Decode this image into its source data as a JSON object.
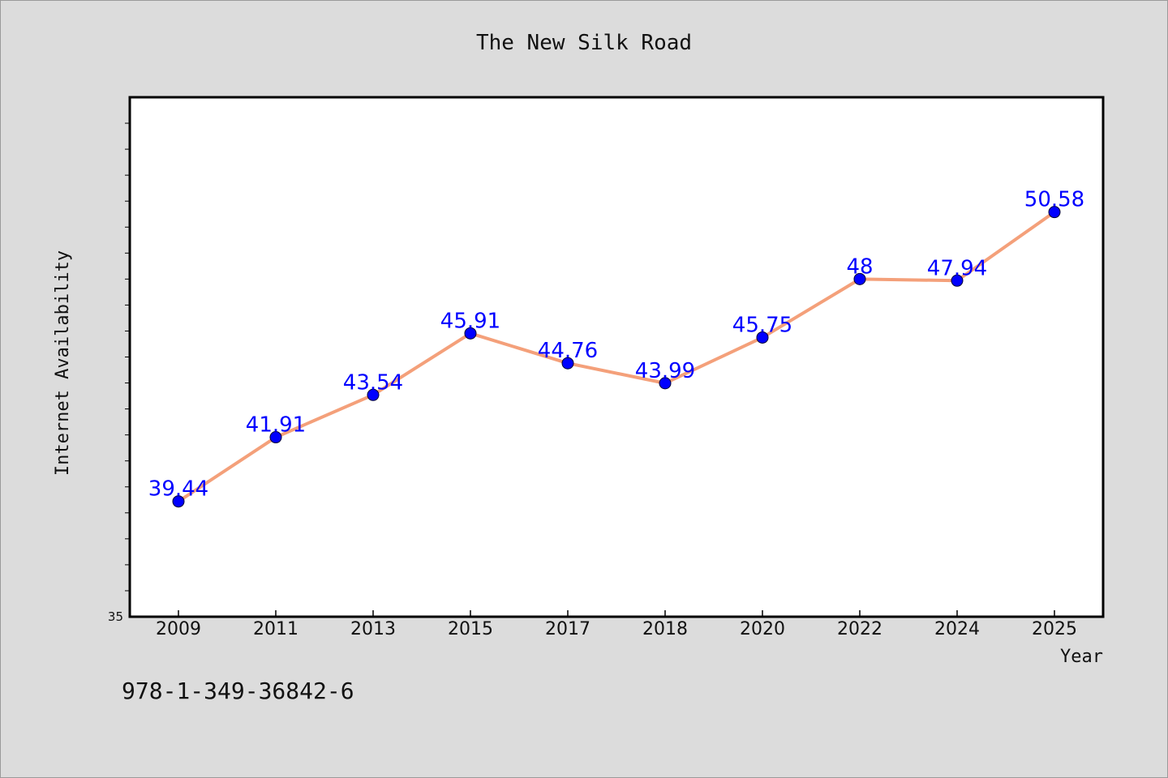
{
  "chart_data": {
    "type": "line",
    "title": "The New Silk Road",
    "xlabel": "Year",
    "ylabel": "Internet Availability",
    "categories": [
      "2009",
      "2011",
      "2013",
      "2015",
      "2017",
      "2018",
      "2020",
      "2022",
      "2024",
      "2025"
    ],
    "series": [
      {
        "values": [
          39.44,
          41.91,
          43.54,
          45.91,
          44.76,
          43.99,
          45.75,
          48,
          47.94,
          50.58
        ],
        "labels": [
          "39.44",
          "41.91",
          "43.54",
          "45.91",
          "44.76",
          "43.99",
          "45.75",
          "48",
          "47.94",
          "50.58"
        ],
        "line_color": "#f4a07a",
        "marker_color": "#0000ff"
      }
    ],
    "ylim": [
      35,
      55
    ],
    "y_tick_labels": [
      "35"
    ],
    "grid": false,
    "legend": "none"
  },
  "footnote": "978-1-349-36842-6",
  "colors": {
    "background": "#dcdcdc",
    "plot_background": "#ffffff",
    "line": "#f4a07a",
    "marker": "#0000ff",
    "data_label": "#0000ff"
  }
}
